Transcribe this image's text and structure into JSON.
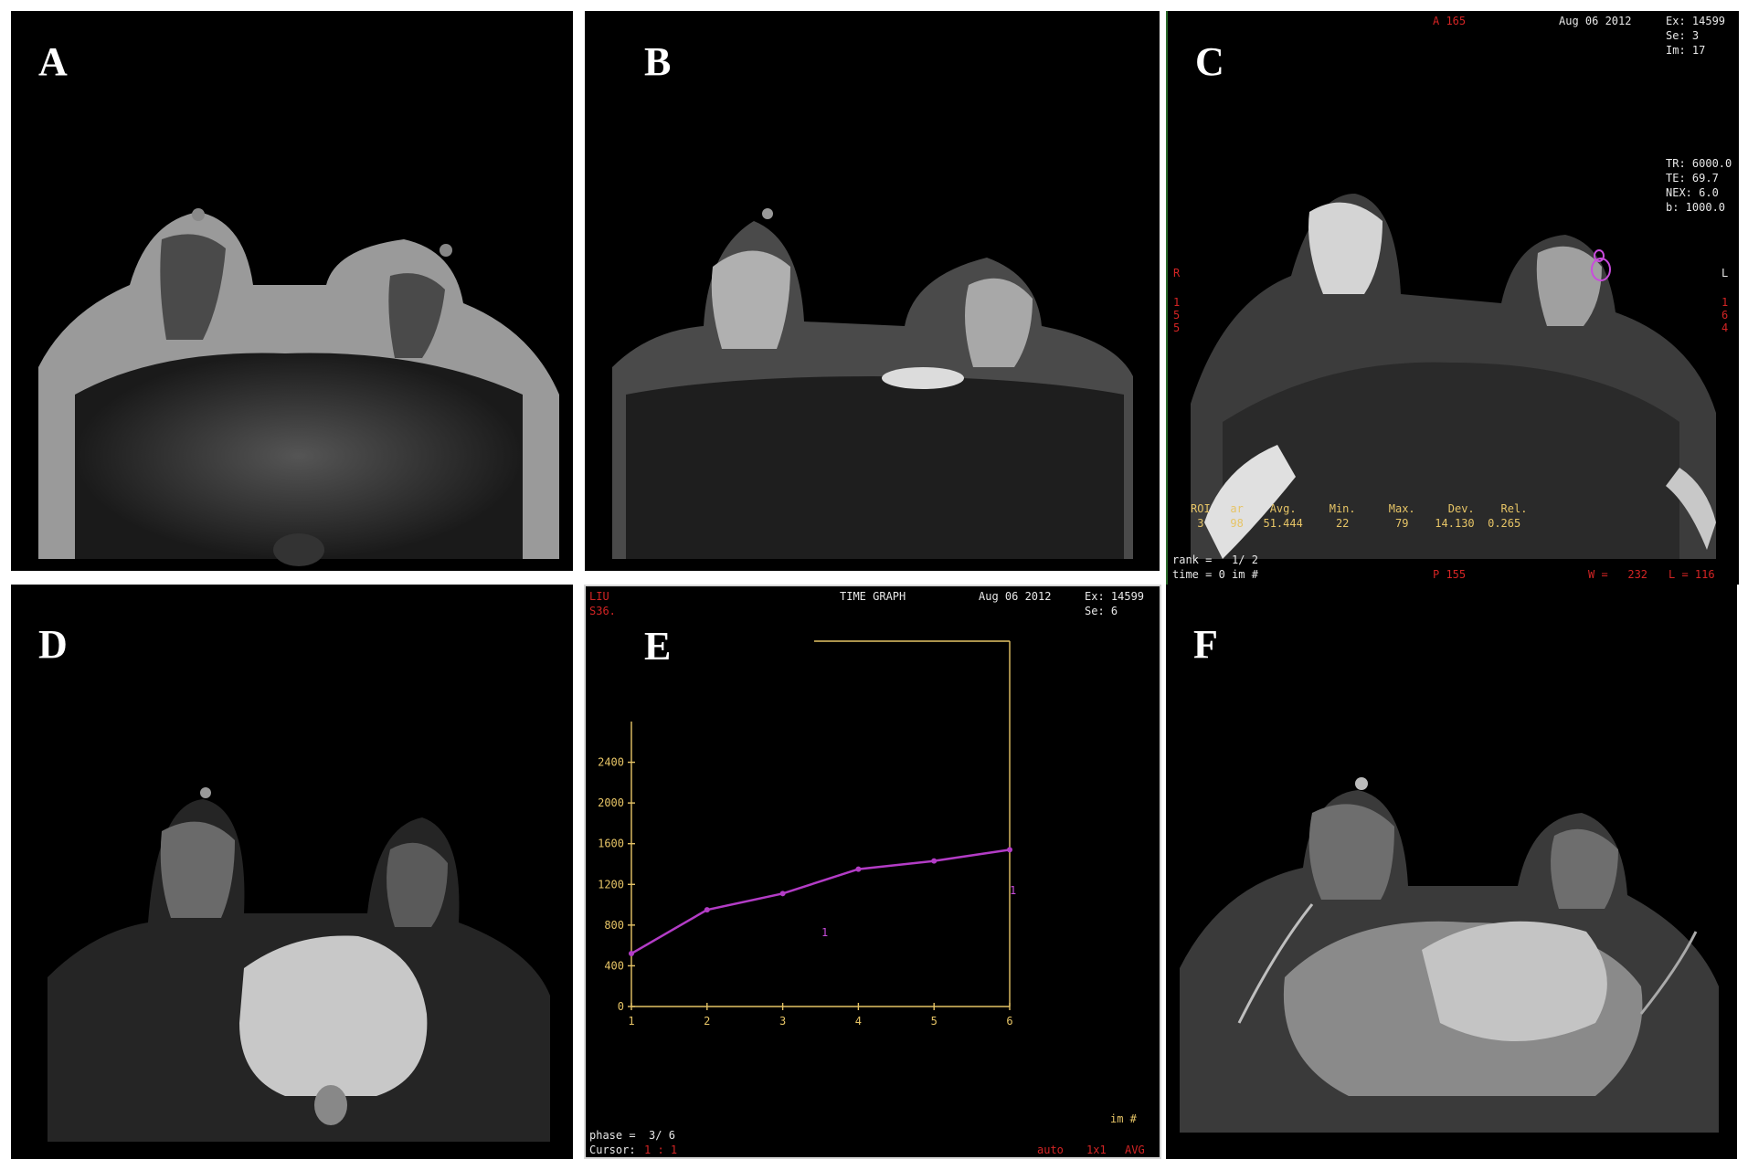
{
  "panels": {
    "A": {
      "label": "A"
    },
    "B": {
      "label": "B"
    },
    "C": {
      "label": "C",
      "top_center": "A 165",
      "date": "Aug 06 2012",
      "exam": "Ex: 14599",
      "series": "Se: 3",
      "image": "Im: 17",
      "tr": "TR: 6000.0",
      "te": "TE: 69.7",
      "nex": "NEX: 6.0",
      "bval": "b: 1000.0",
      "left_side": "R",
      "left_nums": "1\n5\n5",
      "right_side": "L",
      "right_nums": "1\n6\n4",
      "roi_header": "ROI   ar    Avg.     Min.     Max.     Dev.    Rel.",
      "roi_values": " 3    98   51.444     22       79    14.130  0.265",
      "rank": "rank =   1/ 2",
      "time": "time = 0 im #",
      "bottom_center": "P 155",
      "window": "W =   232",
      "level": "L = 116"
    },
    "D": {
      "label": "D"
    },
    "E": {
      "label": "E",
      "top_left1": "LIU",
      "top_left2": "S36.",
      "title": "TIME GRAPH",
      "date": "Aug 06 2012",
      "exam": "Ex: 14599",
      "series": "Se: 6",
      "phase": "phase =  3/ 6",
      "cursor_label": "Cursor:",
      "cursor_value": "1 : 1",
      "auto": "auto",
      "grid": "1x1",
      "avg": "AVG",
      "x_unit": "im #",
      "point_label_1": "1",
      "point_label_2": "1"
    },
    "F": {
      "label": "F"
    }
  },
  "chart_data": {
    "type": "line",
    "x": [
      1,
      2,
      3,
      4,
      5,
      6
    ],
    "y": [
      520,
      950,
      1110,
      1350,
      1430,
      1540
    ],
    "xlim": [
      1,
      6
    ],
    "ylim": [
      0,
      2800
    ],
    "yticks": [
      0,
      400,
      800,
      1200,
      1600,
      2000,
      2400
    ],
    "xticks": [
      1,
      2,
      3,
      4,
      5,
      6
    ],
    "line_color": "#b33cc6",
    "axis_color": "#e6c466"
  }
}
